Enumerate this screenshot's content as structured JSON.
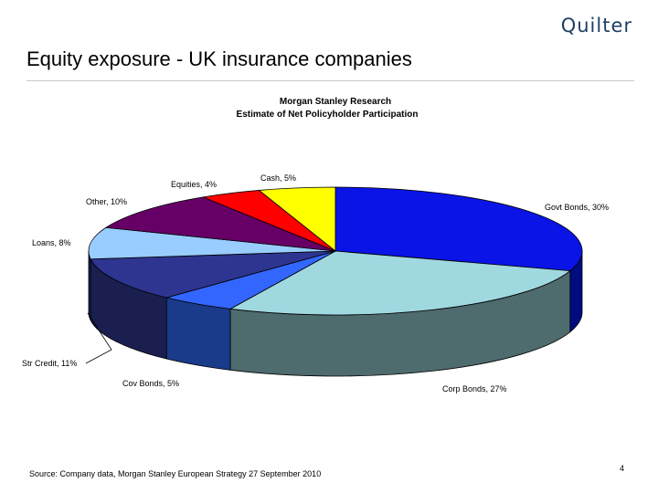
{
  "slide": {
    "logo": "Quilter",
    "title": "Equity exposure - UK insurance companies",
    "source": "Source: Company data, Morgan Stanley European Strategy 27 September 2010",
    "page_number": "4"
  },
  "chart_data": {
    "type": "pie",
    "title": [
      "Morgan Stanley Research",
      "Estimate of Net Policyholder Participation"
    ],
    "categories": [
      "Govt Bonds",
      "Corp Bonds",
      "Cov Bonds",
      "Str Credit",
      "Loans",
      "Other",
      "Equities",
      "Cash"
    ],
    "values": [
      30,
      27,
      5,
      11,
      8,
      10,
      4,
      5
    ],
    "labels": [
      "Govt Bonds, 30%",
      "Corp Bonds, 27%",
      "Cov Bonds, 5%",
      "Str Credit, 11%",
      "Loans, 8%",
      "Other, 10%",
      "Equities, 4%",
      "Cash, 5%"
    ],
    "colors": [
      "#0a14e6",
      "#a0d8e0",
      "#3366ff",
      "#2e3590",
      "#99ccff",
      "#660066",
      "#ff0000",
      "#ffff00"
    ],
    "side_colors": [
      "#000c80",
      "#4e6b6e",
      "#1a3a8a",
      "#1a1f50",
      "#1a1f50",
      "#1a1f50",
      "#1a1f50",
      "#1a1f50"
    ],
    "style": "3d-exploded-none"
  }
}
